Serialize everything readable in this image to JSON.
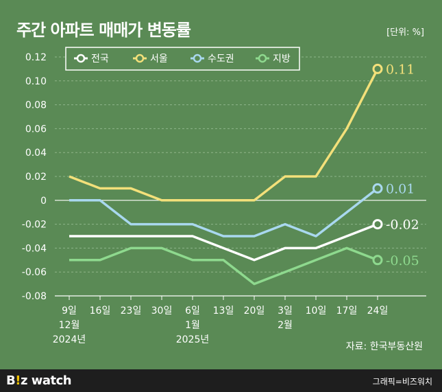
{
  "header": {
    "title": "주간 아파트 매매가 변동률",
    "unit": "[단위: %]"
  },
  "source": "자료: 한국부동산원",
  "footer": {
    "brand_part1": "B",
    "brand_dot": "!",
    "brand_part2": "z watch",
    "credit": "그래픽=비즈워치"
  },
  "colors": {
    "background": "#5a8a55",
    "nationwide": "#ffffff",
    "seoul": "#f3e07a",
    "capital": "#a9d8ef",
    "provinces": "#8ed98e"
  },
  "chart_data": {
    "type": "line",
    "categories": [
      [
        "9일",
        "12월",
        "2024년"
      ],
      [
        "16일"
      ],
      [
        "23일"
      ],
      [
        "30일"
      ],
      [
        "6일",
        "1월",
        "2025년"
      ],
      [
        "13일"
      ],
      [
        "20일"
      ],
      [
        "3일",
        "2월"
      ],
      [
        "10일"
      ],
      [
        "17일"
      ],
      [
        "24일"
      ]
    ],
    "ylim": [
      -0.08,
      0.12
    ],
    "yticks": [
      "0.12",
      "0.10",
      "0.08",
      "0.06",
      "0.04",
      "0.02",
      "0",
      "-0.02",
      "-0.04",
      "-0.06",
      "-0.08"
    ],
    "ytick_values": [
      0.12,
      0.1,
      0.08,
      0.06,
      0.04,
      0.02,
      0,
      -0.02,
      -0.04,
      -0.06,
      -0.08
    ],
    "grid": true,
    "legend_position": "top-left",
    "series": [
      {
        "name": "전국",
        "color": "#ffffff",
        "values": [
          -0.03,
          -0.03,
          -0.03,
          -0.03,
          -0.03,
          -0.04,
          -0.05,
          -0.04,
          -0.04,
          -0.03,
          -0.02
        ],
        "end_label": "-0.02"
      },
      {
        "name": "서울",
        "color": "#f3e07a",
        "values": [
          0.02,
          0.01,
          0.01,
          0.0,
          0.0,
          0.0,
          0.0,
          0.02,
          0.02,
          0.06,
          0.11
        ],
        "end_label": "0.11"
      },
      {
        "name": "수도권",
        "color": "#a9d8ef",
        "values": [
          0.0,
          0.0,
          -0.02,
          -0.02,
          -0.02,
          -0.03,
          -0.03,
          -0.02,
          -0.03,
          -0.01,
          0.01
        ],
        "end_label": "0.01"
      },
      {
        "name": "지방",
        "color": "#8ed98e",
        "values": [
          -0.05,
          -0.05,
          -0.04,
          -0.04,
          -0.05,
          -0.05,
          -0.07,
          -0.06,
          -0.05,
          -0.04,
          -0.05
        ],
        "end_label": "-0.05"
      }
    ]
  }
}
